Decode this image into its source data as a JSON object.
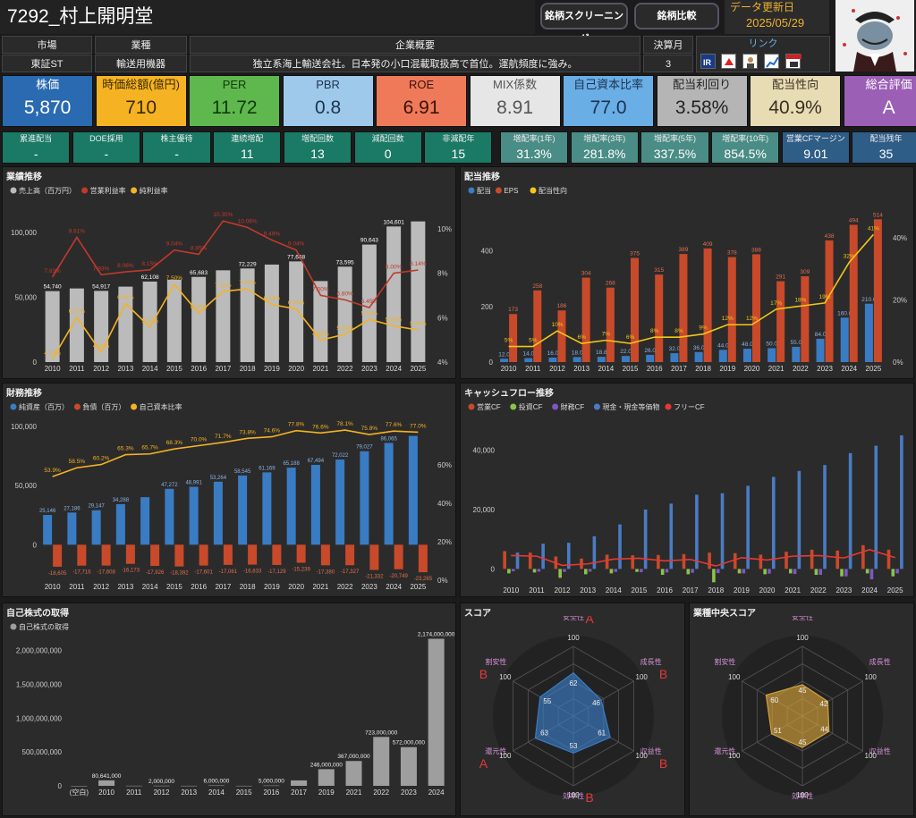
{
  "header": {
    "title": "7292_村上開明堂",
    "btn_screening": "銘柄スクリーニング",
    "btn_compare": "銘柄比較",
    "update_label": "データ更新日",
    "update_date": "2025/05/29"
  },
  "info": {
    "market_label": "市場",
    "market": "東証ST",
    "industry_label": "業種",
    "industry": "輸送用機器",
    "overview_label": "企業概要",
    "overview": "独立系海上輸送会社。日本発の小口混載取扱高で首位。運航頻度に強み。",
    "fiscal_label": "決算月",
    "fiscal": "3",
    "link_label": "リンク",
    "link_icons": [
      "ir-icon",
      "kabutan-icon",
      "person-icon",
      "chart-icon",
      "minkabu-icon"
    ]
  },
  "kpis": [
    {
      "label": "株価",
      "value": "5,870",
      "bg": "#2a6ab0",
      "fg": "#ffffff"
    },
    {
      "label": "時価総額(億円)",
      "value": "710",
      "bg": "#f5b323",
      "fg": "#3a2a00"
    },
    {
      "label": "PER",
      "value": "11.72",
      "bg": "#5fb84d",
      "fg": "#123a0a"
    },
    {
      "label": "PBR",
      "value": "0.8",
      "bg": "#9ec9ea",
      "fg": "#1c3550"
    },
    {
      "label": "ROE",
      "value": "6.91",
      "bg": "#ef7a5a",
      "fg": "#3a1208"
    },
    {
      "label": "MIX係数",
      "value": "8.91",
      "bg": "#e6e6e6",
      "fg": "#555555"
    },
    {
      "label": "自己資本比率",
      "value": "77.0",
      "bg": "#6aaee6",
      "fg": "#1b3350"
    },
    {
      "label": "配当利回り",
      "value": "3.58%",
      "bg": "#b5b5b5",
      "fg": "#222222"
    },
    {
      "label": "配当性向",
      "value": "40.9%",
      "bg": "#e8dcb5",
      "fg": "#3a3020"
    },
    {
      "label": "総合評価",
      "value": "A",
      "bg": "#9b5fb5",
      "fg": "#ffffff"
    }
  ],
  "stats": [
    {
      "label": "累進配当",
      "value": "-",
      "bg": "#1a7a66"
    },
    {
      "label": "DOE採用",
      "value": "-",
      "bg": "#1a7a66"
    },
    {
      "label": "株主優待",
      "value": "-",
      "bg": "#1a7a66"
    },
    {
      "label": "連続増配",
      "value": "11",
      "bg": "#1a7a66"
    },
    {
      "label": "増配回数",
      "value": "13",
      "bg": "#1a7a66"
    },
    {
      "label": "減配回数",
      "value": "0",
      "bg": "#1a7a66"
    },
    {
      "label": "非減配年",
      "value": "15",
      "bg": "#1a7a66"
    },
    {
      "label": "増配率(1年)",
      "value": "31.3%",
      "bg": "#4a8c86"
    },
    {
      "label": "増配率(3年)",
      "value": "281.8%",
      "bg": "#4a8c86"
    },
    {
      "label": "増配率(5年)",
      "value": "337.5%",
      "bg": "#4a8c86"
    },
    {
      "label": "増配率(10年)",
      "value": "854.5%",
      "bg": "#4a8c86"
    },
    {
      "label": "営業CFマージン",
      "value": "9.01",
      "bg": "#2e5d86"
    },
    {
      "label": "配当残年",
      "value": "35",
      "bg": "#2e5d86"
    }
  ],
  "panels": {
    "perf": "業績推移",
    "div": "配当推移",
    "fin": "財務推移",
    "cf": "キャッシュフロー推移",
    "buyback": "自己株式の取得",
    "score": "スコア",
    "indscore": "業種中央スコア"
  },
  "chart_data": [
    {
      "id": "perf",
      "type": "bar",
      "title": "業績推移",
      "categories": [
        "2010",
        "2011",
        "2012",
        "2013",
        "2014",
        "2015",
        "2016",
        "2017",
        "2018",
        "2019",
        "2020",
        "2021",
        "2022",
        "2023",
        "2024",
        "2025"
      ],
      "series": [
        {
          "name": "売上高（百万円）",
          "type": "bar",
          "color": "#bbbbbb",
          "values": [
            54740,
            56800,
            54917,
            58200,
            62108,
            63500,
            65683,
            70800,
            72229,
            75200,
            77668,
            62500,
            73595,
            90643,
            104601,
            108500
          ],
          "labels": [
            "54,740",
            "",
            "54,917",
            "",
            "62,108",
            "",
            "65,683",
            "",
            "72,229",
            "",
            "77,668",
            "",
            "73,595",
            "90,643",
            "104,601",
            ""
          ]
        },
        {
          "name": "営業利益率",
          "type": "line",
          "color": "#c0392b",
          "values": [
            7.83,
            9.61,
            7.93,
            8.06,
            8.15,
            9.04,
            8.85,
            10.35,
            10.06,
            9.49,
            9.04,
            7.0,
            6.8,
            6.45,
            8.0,
            8.14
          ],
          "labels": [
            "7.83%",
            "9.61%",
            "7.93%",
            "8.06%",
            "8.15%",
            "9.04%",
            "8.85%",
            "10.35%",
            "10.06%",
            "9.49%",
            "9.04%",
            "7.00%",
            "6.80%",
            "6.45%",
            "8.00%",
            "8.14%"
          ]
        },
        {
          "name": "純利益率",
          "type": "line",
          "color": "#f5b323",
          "values": [
            4.13,
            6.01,
            4.44,
            6.64,
            5.57,
            7.5,
            6.2,
            7.18,
            7.29,
            6.59,
            6.39,
            4.99,
            5.25,
            5.92,
            5.63,
            5.44
          ],
          "labels": [
            "4.13%",
            "6.01%",
            "4.44%",
            "6.64%",
            "5.57%",
            "7.50%",
            "6.20%",
            "7.18%",
            "7.29%",
            "6.59%",
            "6.39%",
            "4.99%",
            "5.25%",
            "5.92%",
            "5.63%",
            "5.44%"
          ]
        }
      ],
      "y_left": {
        "ticks": [
          "0",
          "50,000",
          "100,000"
        ],
        "range": [
          0,
          120000
        ]
      },
      "y_right": {
        "ticks": [
          "4%",
          "6%",
          "8%",
          "10%"
        ],
        "range": [
          4,
          11
        ]
      }
    },
    {
      "id": "div",
      "type": "bar",
      "title": "配当推移",
      "categories": [
        "2010",
        "2011",
        "2012",
        "2013",
        "2014",
        "2015",
        "2016",
        "2017",
        "2018",
        "2019",
        "2020",
        "2021",
        "2022",
        "2023",
        "2024",
        "2025"
      ],
      "series": [
        {
          "name": "配当",
          "type": "bar",
          "color": "#3a7cc4",
          "values": [
            12,
            14,
            16,
            18,
            18.8,
            22,
            26,
            32,
            36,
            44,
            48,
            50,
            55,
            84,
            160,
            210
          ],
          "labels": [
            "12.0",
            "14.0",
            "16.0",
            "18.0",
            "18.8",
            "22.0",
            "26.0",
            "32.0",
            "36.0",
            "44.0",
            "48.0",
            "50.0",
            "55.0",
            "84.0",
            "160.0",
            "210.0"
          ]
        },
        {
          "name": "EPS",
          "type": "bar",
          "color": "#c84a2a",
          "values": [
            173,
            258,
            186,
            304,
            268,
            375,
            315,
            389,
            409,
            378,
            388,
            291,
            309,
            438,
            494,
            514
          ],
          "labels": [
            "173",
            "258",
            "186",
            "304",
            "268",
            "375",
            "315",
            "389",
            "409",
            "378",
            "388",
            "291",
            "309",
            "438",
            "494",
            "514"
          ]
        },
        {
          "name": "配当性向",
          "type": "line",
          "color": "#f5c518",
          "values": [
            5,
            5,
            10,
            6,
            7,
            6,
            8,
            8,
            9,
            12,
            12,
            17,
            18,
            19,
            32,
            41
          ],
          "labels": [
            "5%",
            "5%",
            "10%",
            "6%",
            "7%",
            "6%",
            "8%",
            "8%",
            "9%",
            "12%",
            "12%",
            "17%",
            "18%",
            "19%",
            "32%",
            "41%"
          ]
        }
      ],
      "y_left": {
        "ticks": [
          "0",
          "200",
          "400"
        ],
        "range": [
          0,
          560
        ]
      },
      "y_right": {
        "ticks": [
          "0%",
          "20%",
          "40%"
        ],
        "range": [
          0,
          50
        ]
      }
    },
    {
      "id": "fin",
      "type": "bar",
      "title": "財務推移",
      "categories": [
        "2010",
        "2011",
        "2012",
        "2013",
        "2014",
        "2015",
        "2016",
        "2017",
        "2018",
        "2019",
        "2020",
        "2021",
        "2022",
        "2023",
        "2024",
        "2025"
      ],
      "series": [
        {
          "name": "純資産（百万）",
          "type": "bar",
          "color": "#3a7cc4",
          "values": [
            25146,
            27186,
            29147,
            34288,
            40200,
            47272,
            48991,
            53264,
            58545,
            61169,
            65188,
            67494,
            72022,
            79027,
            86065,
            92000
          ],
          "labels": [
            "25,146",
            "27,186",
            "29,147",
            "34,288",
            "",
            "47,272",
            "48,991",
            "53,264",
            "58,545",
            "61,169",
            "65,188",
            "67,494",
            "72,022",
            "79,027",
            "86,065",
            ""
          ]
        },
        {
          "name": "負債（百万）",
          "type": "bar",
          "color": "#c84a2a",
          "values": [
            -18605,
            -17716,
            -17608,
            -16173,
            -17926,
            -18392,
            -17601,
            -17061,
            -16833,
            -17129,
            -15239,
            -17380,
            -17327,
            -21332,
            -20749,
            -23265
          ],
          "labels": [
            "-18,605",
            "-17,716",
            "-17,608",
            "-16,173",
            "-17,926",
            "-18,392",
            "-17,601",
            "-17,061",
            "-16,833",
            "-17,129",
            "-15,239",
            "-17,380",
            "-17,327",
            "-21,332",
            "-20,749",
            "-23,265"
          ]
        },
        {
          "name": "自己資本比率",
          "type": "line",
          "color": "#f5b323",
          "values": [
            53.9,
            58.5,
            60.2,
            65.3,
            65.7,
            68.3,
            70.0,
            71.7,
            73.8,
            74.6,
            77.8,
            76.6,
            78.1,
            75.8,
            77.6,
            77.0
          ],
          "labels": [
            "53.9%",
            "58.5%",
            "60.2%",
            "65.3%",
            "65.7%",
            "68.3%",
            "70.0%",
            "71.7%",
            "73.8%",
            "74.6%",
            "77.8%",
            "76.6%",
            "78.1%",
            "75.8%",
            "77.6%",
            "77.0%"
          ]
        }
      ],
      "y_left": {
        "ticks": [
          "0",
          "50,000",
          "100,000"
        ],
        "range": [
          -30000,
          100000
        ]
      },
      "y_right": {
        "ticks": [
          "0%",
          "20%",
          "40%",
          "60%"
        ],
        "range": [
          0,
          80
        ]
      }
    },
    {
      "id": "cf",
      "type": "bar",
      "title": "キャッシュフロー推移",
      "categories": [
        "2010",
        "2011",
        "2012",
        "2013",
        "2014",
        "2015",
        "2016",
        "2017",
        "2018",
        "2019",
        "2020",
        "2021",
        "2022",
        "2023",
        "2024",
        "2025"
      ],
      "series": [
        {
          "name": "営業CF",
          "type": "bar",
          "color": "#c84a2a",
          "values": [
            6000,
            5500,
            4200,
            3500,
            4800,
            4600,
            4700,
            5000,
            5500,
            5300,
            4800,
            5800,
            6500,
            6200,
            8000,
            6500
          ]
        },
        {
          "name": "投資CF",
          "type": "bar",
          "color": "#8bc34a",
          "values": [
            -1500,
            -1200,
            -3000,
            -1800,
            -1500,
            -1000,
            -2000,
            -1800,
            -4500,
            -1500,
            -1800,
            -1500,
            -2000,
            -2500,
            -1500,
            -2500
          ]
        },
        {
          "name": "財務CF",
          "type": "bar",
          "color": "#7e57c2",
          "values": [
            -800,
            -900,
            -1000,
            -900,
            -1000,
            -1100,
            -1200,
            -1300,
            -1400,
            -1500,
            -1600,
            -1700,
            -2000,
            -2500,
            -3500,
            -1500
          ]
        },
        {
          "name": "現金・現金等価物",
          "type": "bar",
          "color": "#4a7cc4",
          "values": [
            5500,
            8500,
            8800,
            11000,
            15000,
            20000,
            22000,
            25000,
            25500,
            28000,
            31000,
            33000,
            35000,
            39000,
            41500,
            45000
          ]
        },
        {
          "name": "フリーCF",
          "type": "line",
          "color": "#e53935",
          "values": [
            4500,
            4300,
            1200,
            1700,
            3300,
            3600,
            2700,
            3200,
            1000,
            3800,
            3000,
            4300,
            4500,
            3700,
            6500,
            3800
          ]
        }
      ],
      "y_left": {
        "ticks": [
          "0",
          "20,000",
          "40,000"
        ],
        "range": [
          -5000,
          48000
        ]
      }
    },
    {
      "id": "buyback",
      "type": "bar",
      "title": "自己株式の取得",
      "categories": [
        "(空白)",
        "2010",
        "2011",
        "2012",
        "2013",
        "2014",
        "2015",
        "2016",
        "2017",
        "2019",
        "2021",
        "2022",
        "2023",
        "2024"
      ],
      "series": [
        {
          "name": "自己株式の取得",
          "type": "bar",
          "color": "#9e9e9e",
          "values": [
            0,
            80641000,
            1500000,
            2000000,
            1000000,
            6000000,
            1000000,
            5000000,
            80000000,
            246000000,
            367000000,
            723000000,
            572000000,
            2174000000
          ],
          "labels": [
            "",
            "80,641,000",
            "",
            "2,000,000",
            "",
            "6,000,000",
            "",
            "5,000,000",
            "",
            "246,000,000",
            "367,000,000",
            "723,000,000",
            "572,000,000",
            "2,174,000,000"
          ]
        }
      ],
      "y_left": {
        "ticks": [
          "0",
          "500,000,000",
          "1,000,000,000",
          "1,500,000,000",
          "2,000,000,000"
        ],
        "range": [
          0,
          2300000000
        ]
      }
    },
    {
      "id": "score",
      "type": "radar",
      "title": "スコア",
      "axes": [
        "安全性",
        "成長性",
        "収益性",
        "効率性",
        "還元性",
        "割安性"
      ],
      "values": [
        62,
        46,
        61,
        53,
        63,
        55
      ],
      "max": 100,
      "grades": [
        "A",
        "B",
        "B",
        "B",
        "A",
        "B"
      ],
      "color": "#3a7cc4"
    },
    {
      "id": "indscore",
      "type": "radar",
      "title": "業種中央スコア",
      "axes": [
        "安全性",
        "成長性",
        "収益性",
        "効率性",
        "還元性",
        "割安性"
      ],
      "values": [
        45,
        42,
        44,
        45,
        51,
        60
      ],
      "max": 100,
      "color": "#d4a23a"
    }
  ]
}
